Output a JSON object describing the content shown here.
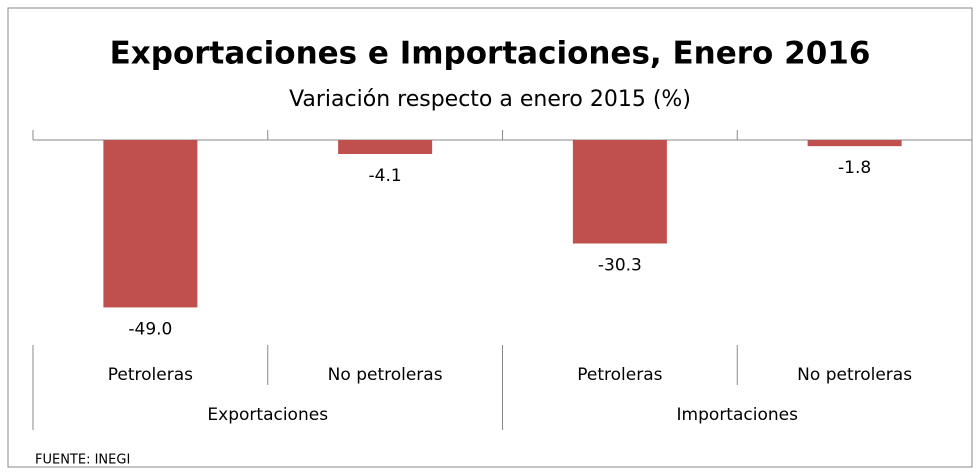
{
  "chart_data": {
    "type": "bar",
    "title": "Exportaciones e Importaciones, Enero 2016",
    "subtitle": "Variación respecto a enero 2015 (%)",
    "categories": [
      "Petroleras",
      "No petroleras",
      "Petroleras",
      "No petroleras"
    ],
    "groups": [
      "Exportaciones",
      "Importaciones"
    ],
    "values": [
      -49.0,
      -4.1,
      -30.3,
      -1.8
    ],
    "value_labels": [
      "-49.0",
      "-4.1",
      "-30.3",
      "-1.8"
    ],
    "color": "#c0504d",
    "ylim": [
      -60,
      0
    ],
    "source": "FUENTE: INEGI"
  }
}
